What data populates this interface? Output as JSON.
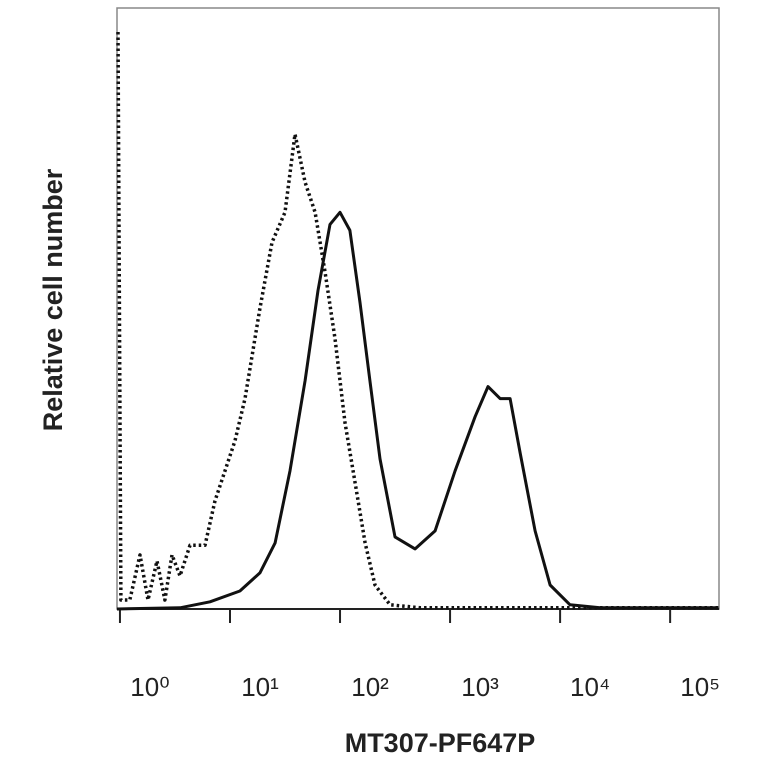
{
  "chart_data": {
    "type": "line",
    "x_label": "MT307-PF647P",
    "y_label": "Relative cell number",
    "x_log": true,
    "xlim": [
      0.94,
      278000
    ],
    "ylim": [
      0,
      100
    ],
    "xticks": [
      {
        "value": 1,
        "label": "10⁰"
      },
      {
        "value": 10,
        "label": "10¹"
      },
      {
        "value": 100,
        "label": "10²"
      },
      {
        "value": 1000,
        "label": "10³"
      },
      {
        "value": 10000,
        "label": "10⁴"
      },
      {
        "value": 100000,
        "label": "10⁵"
      }
    ],
    "series": [
      {
        "color": "#111111",
        "style": "dotted",
        "x": [
          0.96,
          1.02,
          1.23,
          1.52,
          1.8,
          2.17,
          2.56,
          2.97,
          3.51,
          4.33,
          5.93,
          7.31,
          9.01,
          11.1,
          13.7,
          18.7,
          24.1,
          31.6,
          39.0,
          48.1,
          59.3,
          73.1,
          90.1,
          111,
          137,
          169,
          208,
          285,
          534,
          2850,
          23100,
          275000
        ],
        "values": [
          96,
          1.5,
          1.5,
          9,
          1.5,
          8,
          1.5,
          9,
          5.5,
          10.6,
          10.6,
          18,
          23,
          28,
          35,
          50,
          61,
          66,
          79,
          71,
          66,
          56,
          45,
          31,
          21,
          11,
          4,
          0.7,
          0.2,
          0.2,
          0.2,
          0.2
        ]
      },
      {
        "color": "#111111",
        "style": "solid",
        "x": [
          0.94,
          3.51,
          6.58,
          12.3,
          18.7,
          25.7,
          35.1,
          48.1,
          63.1,
          81.1,
          100,
          123,
          152,
          187,
          231,
          316,
          481,
          731,
          1110,
          1690,
          2210,
          2850,
          3510,
          4330,
          5930,
          8110,
          12300,
          23100,
          275000
        ],
        "values": [
          0,
          0.2,
          1.2,
          3,
          6,
          11,
          23,
          38,
          53,
          64,
          66,
          63,
          51,
          38,
          25,
          12,
          10,
          13,
          23,
          32,
          37,
          35,
          35,
          26,
          13,
          4,
          0.7,
          0.2,
          0.2
        ]
      }
    ]
  }
}
